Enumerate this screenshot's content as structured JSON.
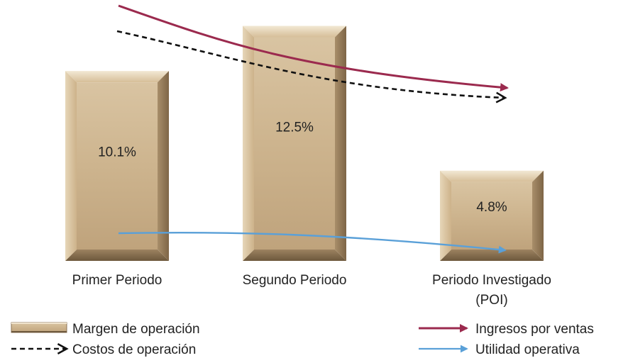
{
  "chart_data": {
    "type": "bar",
    "categories": [
      "Primer Periodo",
      "Segundo Periodo",
      "Periodo Investigado (POI)"
    ],
    "category_lines": [
      [
        "Primer Periodo"
      ],
      [
        "Segundo Periodo"
      ],
      [
        "Periodo Investigado",
        "(POI)"
      ]
    ],
    "series": [
      {
        "name": "Margen de operación",
        "values": [
          10.1,
          12.5,
          4.8
        ],
        "value_labels": [
          "10.1%",
          "12.5%",
          "4.8%"
        ]
      }
    ],
    "ylim": [
      0,
      13.5
    ],
    "grid": false,
    "y_axis_shown": false,
    "trend_arrows": [
      {
        "name": "Ingresos por ventas",
        "style": "solid",
        "color": "#9b2a4e",
        "direction": "decreasing"
      },
      {
        "name": "Costos de operación",
        "style": "dashed",
        "color": "#111111",
        "direction": "decreasing"
      },
      {
        "name": "Utilidad operativa",
        "style": "solid",
        "color": "#5aa0d8",
        "direction": "slightly decreasing"
      }
    ],
    "legend": {
      "placement": "bottom",
      "items": [
        {
          "label": "Margen de operación",
          "symbol": "bar"
        },
        {
          "label": "Ingresos por ventas",
          "symbol": "solid-arrow",
          "color": "#9b2a4e"
        },
        {
          "label": "Costos de operación",
          "symbol": "dashed-arrow",
          "color": "#111111"
        },
        {
          "label": "Utilidad operativa",
          "symbol": "solid-arrow",
          "color": "#5aa0d8"
        }
      ]
    },
    "colors": {
      "bar_face": "#c8ac84",
      "bar_light": "#eadcc0",
      "bar_dark": "#7a6346"
    }
  }
}
